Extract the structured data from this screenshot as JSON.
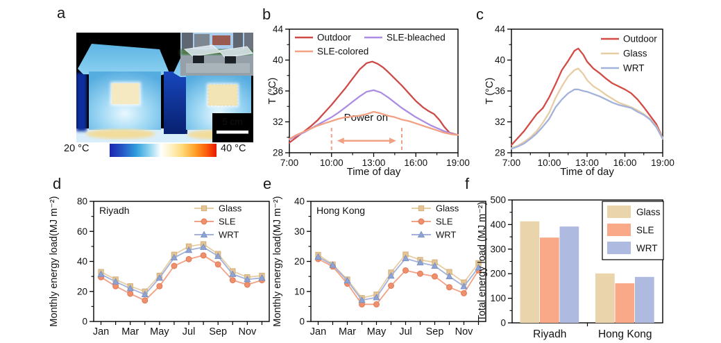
{
  "panels": {
    "a": {
      "label": "a",
      "colorbar_min": "20 °C",
      "colorbar_max": "40 °C",
      "scale_label": "5 cm"
    },
    "b": {
      "label": "b"
    },
    "c": {
      "label": "c"
    },
    "d": {
      "label": "d"
    },
    "e": {
      "label": "e"
    },
    "f": {
      "label": "f"
    }
  },
  "chart_data": [
    {
      "id": "b",
      "type": "line",
      "xlabel": "Time of day",
      "ylabel": "T (°C)",
      "xlim": [
        7,
        19
      ],
      "ylim": [
        28,
        44
      ],
      "yticks": [
        28,
        32,
        36,
        40,
        44
      ],
      "yticks_minor": [
        30,
        34,
        38,
        42
      ],
      "xticks": [
        7,
        10,
        13,
        16,
        19
      ],
      "xtick_labels": [
        "7:00",
        "10:00",
        "13:00",
        "16:00",
        "19:00"
      ],
      "xticks_minor": [
        8.5,
        11.5,
        14.5,
        17.5
      ],
      "legend_position": "top-left-inside",
      "series": [
        {
          "name": "Outdoor",
          "color": "#cd4a47",
          "x": [
            7,
            7.5,
            8,
            8.5,
            9,
            9.5,
            10,
            10.5,
            11,
            11.5,
            12,
            12.5,
            12.9,
            13.3,
            13.7,
            14,
            14.5,
            15,
            15.5,
            16,
            16.5,
            16.9,
            17.3,
            17.7,
            18,
            18.4,
            19
          ],
          "y": [
            29.3,
            30,
            30.7,
            31.4,
            32.2,
            33.2,
            34.2,
            35.3,
            36.4,
            37.6,
            38.8,
            39.6,
            39.8,
            39.5,
            39,
            38.5,
            37.6,
            36.7,
            35.7,
            34.7,
            33.9,
            33.4,
            33,
            32.2,
            31.4,
            30.6,
            30.3
          ]
        },
        {
          "name": "SLE-bleached",
          "color": "#ab8de3",
          "x": [
            7,
            7.5,
            8,
            8.5,
            9,
            9.5,
            10,
            10.5,
            11,
            11.5,
            12,
            12.5,
            13,
            13.5,
            14,
            14.5,
            15,
            15.5,
            16,
            16.5,
            17,
            17.5,
            18,
            18.5,
            19
          ],
          "y": [
            29.7,
            30.2,
            30.6,
            31.1,
            31.6,
            32.1,
            32.6,
            33.2,
            33.9,
            34.6,
            35.3,
            35.9,
            36.1,
            35.8,
            35.2,
            34.5,
            33.8,
            33.2,
            32.6,
            32.1,
            31.6,
            31.2,
            30.8,
            30.5,
            30.3
          ]
        },
        {
          "name": "SLE-colored",
          "color": "#f2a183",
          "x": [
            7,
            7.5,
            8,
            8.5,
            9,
            9.5,
            10,
            10.5,
            11,
            11.5,
            12,
            12.5,
            13,
            13.5,
            14,
            14.5,
            15,
            15.5,
            16,
            16.5,
            17,
            17.5,
            18,
            18.5,
            19
          ],
          "y": [
            29.8,
            30.3,
            30.7,
            31.1,
            31.5,
            31.8,
            32.1,
            32.4,
            32.6,
            32.7,
            32.8,
            33,
            33.3,
            33.1,
            32.8,
            32.6,
            32.3,
            32.1,
            31.8,
            31.5,
            31.2,
            30.9,
            30.6,
            30.4,
            30.3
          ]
        }
      ],
      "annotation": {
        "text": "Power on",
        "x_start": 10,
        "x_end": 15,
        "line_y_bottom": 28.35,
        "line_y_top": 31.6,
        "arrow_y": 29.55,
        "text_x": 12.45,
        "text_y": 32.15,
        "color": "#f0a183"
      }
    },
    {
      "id": "c",
      "type": "line",
      "xlabel": "Time of day",
      "ylabel": "T (°C)",
      "xlim": [
        7,
        19
      ],
      "ylim": [
        28,
        44
      ],
      "yticks": [
        28,
        32,
        36,
        40,
        44
      ],
      "yticks_minor": [
        30,
        34,
        38,
        42
      ],
      "xticks": [
        7,
        10,
        13,
        16,
        19
      ],
      "xtick_labels": [
        "7:00",
        "10:00",
        "13:00",
        "16:00",
        "19:00"
      ],
      "xticks_minor": [
        8.5,
        11.5,
        14.5,
        17.5
      ],
      "legend_position": "top-right-inside",
      "series": [
        {
          "name": "Outdoor",
          "color": "#d34b45",
          "x": [
            7,
            7.5,
            8,
            8.5,
            9,
            9.5,
            10,
            10.5,
            11,
            11.5,
            12,
            12.3,
            12.7,
            13,
            13.5,
            14,
            14.5,
            15,
            15.5,
            16,
            16.5,
            17,
            17.5,
            18,
            18.5,
            19
          ],
          "y": [
            29,
            29.9,
            30.8,
            31.9,
            33,
            33.8,
            35.2,
            36.9,
            38.7,
            39.9,
            41.2,
            41.5,
            40.7,
            39.8,
            38.9,
            38.3,
            37.6,
            37,
            36.6,
            36.2,
            35.7,
            34.9,
            33.9,
            32.8,
            31.7,
            29.9
          ]
        },
        {
          "name": "Glass",
          "color": "#e7cda3",
          "x": [
            7,
            7.5,
            8,
            8.5,
            9,
            9.5,
            10,
            10.5,
            11,
            11.5,
            12,
            12.3,
            12.7,
            13,
            13.5,
            14,
            14.5,
            15,
            15.5,
            16,
            16.5,
            17,
            17.5,
            18,
            18.5,
            19
          ],
          "y": [
            28.6,
            28.9,
            29.4,
            30,
            30.8,
            31.9,
            33.2,
            35.1,
            36.6,
            37.9,
            38.7,
            38.9,
            38.2,
            37.4,
            36.6,
            36.1,
            35.5,
            35,
            34.5,
            34.2,
            33.9,
            33.5,
            33,
            32.4,
            31.4,
            29.9
          ]
        },
        {
          "name": "WRT",
          "color": "#a3b2da",
          "x": [
            7,
            7.5,
            8,
            8.5,
            9,
            9.5,
            10,
            10.5,
            11,
            11.5,
            12,
            12.3,
            12.7,
            13,
            13.5,
            14,
            14.5,
            15,
            15.5,
            16,
            16.5,
            17,
            17.5,
            18,
            18.5,
            19
          ],
          "y": [
            28.5,
            28.8,
            29.2,
            29.8,
            30.5,
            31.4,
            32.4,
            33.9,
            34.9,
            35.7,
            36.2,
            36.2,
            36,
            35.9,
            35.6,
            35.3,
            34.9,
            34.5,
            34.2,
            34,
            33.8,
            33.3,
            32.9,
            32.3,
            31.3,
            29.8
          ]
        }
      ]
    },
    {
      "id": "d",
      "type": "line_markers",
      "title": "Riyadh",
      "ylabel": "Monthly energy load(MJ m⁻²)",
      "ylim": [
        0,
        80
      ],
      "yticks": [
        0,
        20,
        40,
        60,
        80
      ],
      "yticks_minor": [
        10,
        30,
        50,
        70
      ],
      "categories": [
        "Jan",
        "Feb",
        "Mar",
        "Apr",
        "May",
        "Jun",
        "Jul",
        "Aug",
        "Sep",
        "Oct",
        "Nov",
        "Dec"
      ],
      "xtick_label_indices": [
        0,
        2,
        4,
        6,
        8,
        10
      ],
      "xtick_labels": [
        "Jan",
        "Mar",
        "May",
        "Jul",
        "Sep",
        "Nov"
      ],
      "series": [
        {
          "name": "Glass",
          "color": "#e7cda3",
          "fill": "#e4c594",
          "edge": "#d2ab76",
          "marker": "square",
          "values": [
            33,
            28,
            23.5,
            20,
            30.5,
            44.5,
            50,
            51.5,
            45,
            33.5,
            29.5,
            30.5
          ]
        },
        {
          "name": "SLE",
          "color": "#f2a183",
          "fill": "#ee8f6d",
          "edge": "#df764f",
          "marker": "circle",
          "values": [
            29.5,
            23.5,
            18.5,
            14,
            23.5,
            37,
            41.5,
            44,
            38,
            27.5,
            24.5,
            27.5
          ]
        },
        {
          "name": "WRT",
          "color": "#a3b2da",
          "fill": "#8ea4d2",
          "edge": "#7a90c2",
          "marker": "triangle",
          "values": [
            31.5,
            26.5,
            22,
            18,
            29,
            42.5,
            47.5,
            49.5,
            43.5,
            31.5,
            28,
            29
          ]
        }
      ]
    },
    {
      "id": "e",
      "type": "line_markers",
      "title": "Hong Kong",
      "ylabel": "Monthly energy load(MJ m⁻²)",
      "ylim": [
        0,
        40
      ],
      "yticks": [
        0,
        10,
        20,
        30,
        40
      ],
      "yticks_minor": [
        5,
        15,
        25,
        35
      ],
      "categories": [
        "Jan",
        "Feb",
        "Mar",
        "Apr",
        "May",
        "Jun",
        "Jul",
        "Aug",
        "Sep",
        "Oct",
        "Nov",
        "Dec"
      ],
      "xtick_label_indices": [
        0,
        2,
        4,
        6,
        8,
        10
      ],
      "xtick_labels": [
        "Jan",
        "Mar",
        "May",
        "Jul",
        "Sep",
        "Nov"
      ],
      "series": [
        {
          "name": "Glass",
          "color": "#e7cda3",
          "fill": "#e4c594",
          "edge": "#d2ab76",
          "marker": "square",
          "values": [
            22.2,
            19,
            14,
            7.8,
            9,
            16.3,
            22.3,
            20.5,
            19.7,
            16.5,
            13,
            19.4
          ]
        },
        {
          "name": "SLE",
          "color": "#f2a183",
          "fill": "#ee8f6d",
          "edge": "#df764f",
          "marker": "circle",
          "values": [
            20.8,
            18.3,
            12.6,
            5.7,
            5.7,
            11.9,
            17,
            15.9,
            15,
            11.4,
            9.4,
            17
          ]
        },
        {
          "name": "WRT",
          "color": "#a3b2da",
          "fill": "#8ea4d2",
          "edge": "#7a90c2",
          "marker": "triangle",
          "values": [
            21.5,
            18.8,
            13.6,
            7.1,
            8,
            15.2,
            21,
            19.6,
            18.5,
            15,
            11.7,
            17.9
          ]
        }
      ]
    },
    {
      "id": "f",
      "type": "bar",
      "ylabel": "Total energy load (MJ m⁻²)",
      "ylim": [
        0,
        500
      ],
      "yticks": [
        0,
        100,
        200,
        300,
        400,
        500
      ],
      "yticks_minor": [
        50,
        150,
        250,
        350,
        450
      ],
      "categories": [
        "Riyadh",
        "Hong Kong"
      ],
      "series": [
        {
          "name": "Glass",
          "color": "#e9d4ac",
          "values": [
            413,
            201
          ]
        },
        {
          "name": "SLE",
          "color": "#f9a987",
          "values": [
            347,
            161
          ]
        },
        {
          "name": "WRT",
          "color": "#aebadf",
          "values": [
            392,
            187
          ]
        }
      ]
    }
  ]
}
